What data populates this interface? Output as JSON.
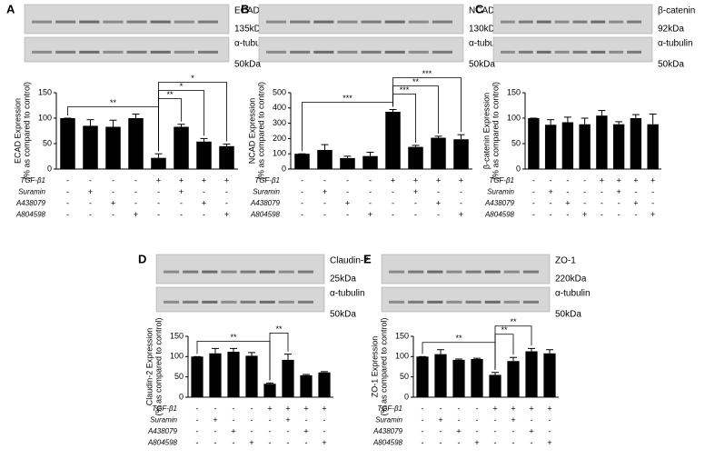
{
  "chart_data": [
    {
      "type": "bar",
      "panel": "A",
      "blots": [
        {
          "protein": "ECAD",
          "size": "135kDa"
        },
        {
          "protein": "α-tubulin",
          "size": "50kDa"
        }
      ],
      "ylabel": [
        "ECAD Expression",
        "(% as compared to control)"
      ],
      "ylim": [
        0,
        150
      ],
      "yticks": [
        0,
        50,
        100,
        150
      ],
      "color": "#000000",
      "values": [
        100,
        85,
        83,
        100,
        22,
        83,
        54,
        45
      ],
      "errors": [
        0,
        12,
        13,
        8,
        8,
        5,
        6,
        4
      ],
      "treatments": [
        {
          "name": "TGF-β1",
          "signs": [
            "-",
            "-",
            "-",
            "-",
            "+",
            "+",
            "+",
            "+"
          ]
        },
        {
          "name": "Suramin",
          "signs": [
            "-",
            "+",
            "-",
            "-",
            "-",
            "+",
            "-",
            "-"
          ]
        },
        {
          "name": "A438079",
          "signs": [
            "-",
            "-",
            "+",
            "-",
            "-",
            "-",
            "+",
            "-"
          ]
        },
        {
          "name": "A804598",
          "signs": [
            "-",
            "-",
            "-",
            "+",
            "-",
            "-",
            "-",
            "+"
          ]
        }
      ],
      "brackets": [
        {
          "from": 0,
          "to": 4,
          "label": "**"
        },
        {
          "from": 4,
          "to": 5,
          "label": "**"
        },
        {
          "from": 4,
          "to": 6,
          "label": "*"
        },
        {
          "from": 4,
          "to": 7,
          "label": "*"
        }
      ]
    },
    {
      "type": "bar",
      "panel": "B",
      "blots": [
        {
          "protein": "NCAD",
          "size": "130kDa"
        },
        {
          "protein": "α-tubulin",
          "size": "50kDa"
        }
      ],
      "ylabel": [
        "NCAD Expression",
        "(% as compared to control)"
      ],
      "ylim": [
        0,
        500
      ],
      "yticks": [
        0,
        100,
        200,
        300,
        400,
        500
      ],
      "color": "#000000",
      "values": [
        100,
        125,
        72,
        85,
        375,
        145,
        205,
        195
      ],
      "errors": [
        0,
        35,
        12,
        25,
        15,
        10,
        10,
        30
      ],
      "treatments": [
        {
          "name": "TGF-β1",
          "signs": [
            "-",
            "-",
            "-",
            "-",
            "+",
            "+",
            "+",
            "+"
          ]
        },
        {
          "name": "Suramin",
          "signs": [
            "-",
            "+",
            "-",
            "-",
            "-",
            "+",
            "-",
            "-"
          ]
        },
        {
          "name": "A438079",
          "signs": [
            "-",
            "-",
            "+",
            "-",
            "-",
            "-",
            "+",
            "-"
          ]
        },
        {
          "name": "A804598",
          "signs": [
            "-",
            "-",
            "-",
            "+",
            "-",
            "-",
            "-",
            "+"
          ]
        }
      ],
      "brackets": [
        {
          "from": 0,
          "to": 4,
          "label": "***"
        },
        {
          "from": 4,
          "to": 5,
          "label": "***"
        },
        {
          "from": 4,
          "to": 6,
          "label": "**"
        },
        {
          "from": 4,
          "to": 7,
          "label": "***"
        }
      ]
    },
    {
      "type": "bar",
      "panel": "C",
      "blots": [
        {
          "protein": "β-catenin",
          "size": "92kDa"
        },
        {
          "protein": "α-tubulin",
          "size": "50kDa"
        }
      ],
      "ylabel": [
        "β-catenin Expression",
        "(% as compared to control)"
      ],
      "ylim": [
        0,
        150
      ],
      "yticks": [
        0,
        50,
        100,
        150
      ],
      "color": "#000000",
      "values": [
        100,
        87,
        92,
        88,
        105,
        88,
        100,
        88
      ],
      "errors": [
        0,
        10,
        10,
        12,
        10,
        5,
        7,
        20
      ],
      "treatments": [
        {
          "name": "TGF-β1",
          "signs": [
            "-",
            "-",
            "-",
            "-",
            "+",
            "+",
            "+",
            "+"
          ]
        },
        {
          "name": "Suramin",
          "signs": [
            "-",
            "+",
            "-",
            "-",
            "-",
            "+",
            "-",
            "-"
          ]
        },
        {
          "name": "A438079",
          "signs": [
            "-",
            "-",
            "+",
            "-",
            "-",
            "-",
            "+",
            "-"
          ]
        },
        {
          "name": "A804598",
          "signs": [
            "-",
            "-",
            "-",
            "+",
            "-",
            "-",
            "-",
            "+"
          ]
        }
      ],
      "brackets": []
    },
    {
      "type": "bar",
      "panel": "D",
      "blots": [
        {
          "protein": "Claudin-2",
          "size": "25kDa"
        },
        {
          "protein": "α-tubulin",
          "size": "50kDa"
        }
      ],
      "ylabel": [
        "Claudin-2 Expression",
        "(% as compared to control)"
      ],
      "ylim": [
        0,
        150
      ],
      "yticks": [
        0,
        50,
        100,
        150
      ],
      "color": "#000000",
      "values": [
        100,
        108,
        112,
        102,
        33,
        92,
        54,
        61
      ],
      "errors": [
        0,
        12,
        8,
        8,
        2,
        14,
        2,
        2
      ],
      "treatments": [
        {
          "name": "TGF-β1",
          "signs": [
            "-",
            "-",
            "-",
            "-",
            "+",
            "+",
            "+",
            "+"
          ]
        },
        {
          "name": "Suramin",
          "signs": [
            "-",
            "+",
            "-",
            "-",
            "-",
            "+",
            "-",
            "-"
          ]
        },
        {
          "name": "A438079",
          "signs": [
            "-",
            "-",
            "+",
            "-",
            "-",
            "-",
            "+",
            "-"
          ]
        },
        {
          "name": "A804598",
          "signs": [
            "-",
            "-",
            "-",
            "+",
            "-",
            "-",
            "-",
            "+"
          ]
        }
      ],
      "brackets": [
        {
          "from": 0,
          "to": 4,
          "label": "**"
        },
        {
          "from": 4,
          "to": 5,
          "label": "**"
        }
      ]
    },
    {
      "type": "bar",
      "panel": "E",
      "blots": [
        {
          "protein": "ZO-1",
          "size": "220kDa"
        },
        {
          "protein": "α-tubulin",
          "size": "50kDa"
        }
      ],
      "ylabel": [
        "ZO-1 Expression",
        "(% as compared to control)"
      ],
      "ylim": [
        0,
        150
      ],
      "yticks": [
        0,
        50,
        100,
        150
      ],
      "color": "#000000",
      "values": [
        100,
        106,
        92,
        94,
        55,
        89,
        113,
        108
      ],
      "errors": [
        0,
        11,
        2,
        2,
        6,
        9,
        7,
        9
      ],
      "treatments": [
        {
          "name": "TGF-β1",
          "signs": [
            "-",
            "-",
            "-",
            "-",
            "+",
            "+",
            "+",
            "+"
          ]
        },
        {
          "name": "Suramin",
          "signs": [
            "-",
            "+",
            "-",
            "-",
            "-",
            "+",
            "-",
            "-"
          ]
        },
        {
          "name": "A438079",
          "signs": [
            "-",
            "-",
            "+",
            "-",
            "-",
            "-",
            "+",
            "-"
          ]
        },
        {
          "name": "A804598",
          "signs": [
            "-",
            "-",
            "-",
            "+",
            "-",
            "-",
            "-",
            "+"
          ]
        }
      ],
      "brackets": [
        {
          "from": 0,
          "to": 4,
          "label": "**"
        },
        {
          "from": 4,
          "to": 5,
          "label": "**"
        },
        {
          "from": 4,
          "to": 6,
          "label": "**"
        }
      ]
    }
  ]
}
